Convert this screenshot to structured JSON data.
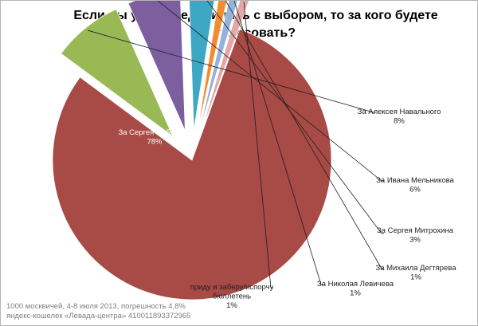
{
  "chart_data": {
    "type": "pie",
    "title": "Если вы уже определились с выбором,  то за кого будете\nголосовать?",
    "slices": [
      {
        "label": "За Сергея Собянина",
        "value_label": "78%",
        "value": 78,
        "color": "#a84a46",
        "exploded": false
      },
      {
        "label": "За Алексея Навального",
        "value_label": "8%",
        "value": 8,
        "color": "#98b954",
        "exploded": true
      },
      {
        "label": "За Ивана Мельникова",
        "value_label": "6%",
        "value": 6,
        "color": "#7d5fa0",
        "exploded": true
      },
      {
        "label": "За Сергея Митрохина",
        "value_label": "3%",
        "value": 3,
        "color": "#3ea8c4",
        "exploded": true
      },
      {
        "label": "За Михаила Дегтярева",
        "value_label": "1%",
        "value": 1,
        "color": "#f28c2e",
        "exploded": true
      },
      {
        "label": "За Николая Левичева",
        "value_label": "1%",
        "value": 1,
        "color": "#94b2dc",
        "exploded": true
      },
      {
        "label": "приду и заберу/испорчу\nбюллетень",
        "value_label": "1%",
        "value": 1,
        "color": "#e3a7a6",
        "exploded": true
      }
    ]
  },
  "footnote": {
    "line1": "1000 москвичей, 4-8 июля 2013, погрешность 4,8%",
    "line2": "яндекс-кошелек «Левада-центра» 410011893372965"
  }
}
